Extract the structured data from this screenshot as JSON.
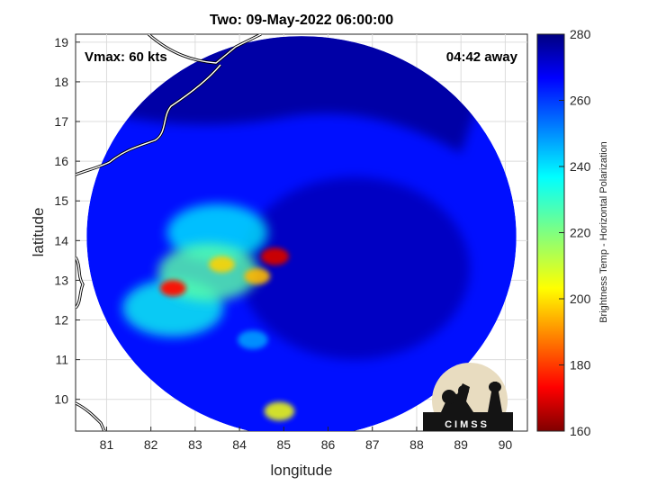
{
  "chart_data": {
    "type": "heatmap",
    "title": "Two: 09-May-2022 06:00:00",
    "xlabel": "longitude",
    "ylabel": "latitude",
    "xlim": [
      80.3,
      90.5
    ],
    "ylim": [
      9.2,
      19.2
    ],
    "xticks": [
      81,
      82,
      83,
      84,
      85,
      86,
      87,
      88,
      89,
      90
    ],
    "yticks": [
      10,
      11,
      12,
      13,
      14,
      15,
      16,
      17,
      18,
      19
    ],
    "grid": true,
    "annotations": {
      "left": "Vmax: 60 kts",
      "right": "04:42 away"
    },
    "colorbar": {
      "label": "Brightness Temp - Horizontal Polarization",
      "range": [
        160,
        280
      ],
      "ticks": [
        160,
        180,
        200,
        220,
        240,
        260,
        280
      ],
      "colormap": "jet"
    },
    "swath": {
      "center_lon": 85.4,
      "center_lat": 14.1,
      "lon_radius": 4.85,
      "lat_radius": 5.05
    },
    "features": [
      {
        "name": "eyewall convection",
        "lon": 84.8,
        "lat": 13.6,
        "tb": 168
      },
      {
        "name": "rainband core",
        "lon": 84.4,
        "lat": 13.1,
        "tb": 195
      },
      {
        "name": "rainband core",
        "lon": 83.6,
        "lat": 13.4,
        "tb": 198
      },
      {
        "name": "rainband core",
        "lon": 82.5,
        "lat": 12.8,
        "tb": 175
      },
      {
        "name": "outer band",
        "lon": 84.9,
        "lat": 9.7,
        "tb": 205
      },
      {
        "name": "rainband",
        "lon": 83.3,
        "lat": 13.2,
        "tb": 225
      },
      {
        "name": "rainband",
        "lon": 82.5,
        "lat": 12.3,
        "tb": 235
      },
      {
        "name": "rainband",
        "lon": 83.5,
        "lat": 14.2,
        "tb": 238
      },
      {
        "name": "outer band",
        "lon": 84.3,
        "lat": 11.5,
        "tb": 245
      }
    ],
    "colors": {
      "background_tb": 265,
      "eye_region_tb": 273,
      "cold_north_tb": 276
    }
  },
  "logo": {
    "text": "CIMSS"
  }
}
